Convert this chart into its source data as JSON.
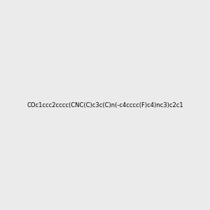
{
  "smiles": "COc1ccc2cccc(CNC(C)c3c(C)n(-c4cccc(F)c4)nc3)c2c1",
  "title": "",
  "background_color": "#ebebeb",
  "figsize": [
    3.0,
    3.0
  ],
  "dpi": 100
}
